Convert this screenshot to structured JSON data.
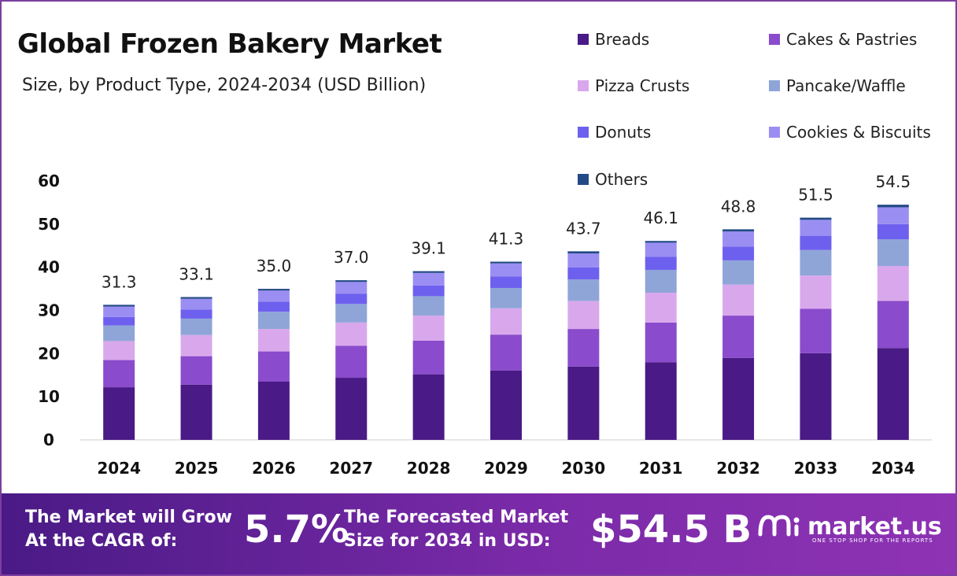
{
  "header": {
    "title": "Global Frozen Bakery Market",
    "subtitle": "Size, by Product Type, 2024-2034 (USD Billion)"
  },
  "legend": [
    {
      "label": "Breads",
      "color": "#4a1a86"
    },
    {
      "label": "Cakes & Pastries",
      "color": "#8a4bcc"
    },
    {
      "label": "Pizza Crusts",
      "color": "#d9a8ec"
    },
    {
      "label": "Pancake/Waffle",
      "color": "#8fa5d8"
    },
    {
      "label": "Donuts",
      "color": "#6e60ee"
    },
    {
      "label": "Cookies & Biscuits",
      "color": "#9b8ef2"
    },
    {
      "label": "Others",
      "color": "#234a86"
    }
  ],
  "chart_data": {
    "type": "bar",
    "stacked": true,
    "title": "Global Frozen Bakery Market",
    "subtitle": "Size, by Product Type, 2024-2034 (USD Billion)",
    "xlabel": "",
    "ylabel": "",
    "ylim": [
      0,
      60
    ],
    "yticks": [
      0,
      10,
      20,
      30,
      40,
      50,
      60
    ],
    "categories": [
      "2024",
      "2025",
      "2026",
      "2027",
      "2028",
      "2029",
      "2030",
      "2031",
      "2032",
      "2033",
      "2034"
    ],
    "totals": [
      31.3,
      33.1,
      35.0,
      37.0,
      39.1,
      41.3,
      43.7,
      46.1,
      48.8,
      51.5,
      54.5
    ],
    "total_labels": [
      "31.3",
      "33.1",
      "35.0",
      "37.0",
      "39.1",
      "41.3",
      "43.7",
      "46.1",
      "48.8",
      "51.5",
      "54.5"
    ],
    "series": [
      {
        "name": "Breads",
        "values": [
          12.2,
          12.8,
          13.5,
          14.4,
          15.2,
          16.1,
          17.0,
          18.0,
          19.0,
          20.1,
          21.3
        ]
      },
      {
        "name": "Cakes & Pastries",
        "values": [
          6.3,
          6.6,
          7.0,
          7.4,
          7.8,
          8.3,
          8.7,
          9.2,
          9.8,
          10.3,
          10.9
        ]
      },
      {
        "name": "Pizza Crusts",
        "values": [
          4.4,
          4.9,
          5.2,
          5.4,
          5.8,
          6.1,
          6.5,
          6.9,
          7.2,
          7.7,
          8.1
        ]
      },
      {
        "name": "Pancake/Waffle",
        "values": [
          3.6,
          3.8,
          4.0,
          4.3,
          4.5,
          4.7,
          5.0,
          5.3,
          5.6,
          5.9,
          6.2
        ]
      },
      {
        "name": "Donuts",
        "values": [
          2.0,
          2.1,
          2.3,
          2.4,
          2.5,
          2.7,
          2.8,
          3.0,
          3.2,
          3.3,
          3.5
        ]
      },
      {
        "name": "Cookies & Biscuits",
        "values": [
          2.4,
          2.5,
          2.6,
          2.7,
          2.9,
          3.0,
          3.2,
          3.3,
          3.5,
          3.7,
          3.9
        ]
      },
      {
        "name": "Others",
        "values": [
          0.4,
          0.4,
          0.4,
          0.4,
          0.4,
          0.4,
          0.5,
          0.4,
          0.5,
          0.5,
          0.6
        ]
      }
    ]
  },
  "footer": {
    "cagr_label_line1": "The Market will Grow",
    "cagr_label_line2": "At the CAGR of:",
    "cagr_value": "5.7%",
    "forecast_label_line1": "The Forecasted Market",
    "forecast_label_line2": "Size for 2034 in USD:",
    "forecast_value": "$54.5 B",
    "brand_name": "market.us",
    "brand_tagline": "ONE STOP SHOP FOR THE REPORTS"
  }
}
